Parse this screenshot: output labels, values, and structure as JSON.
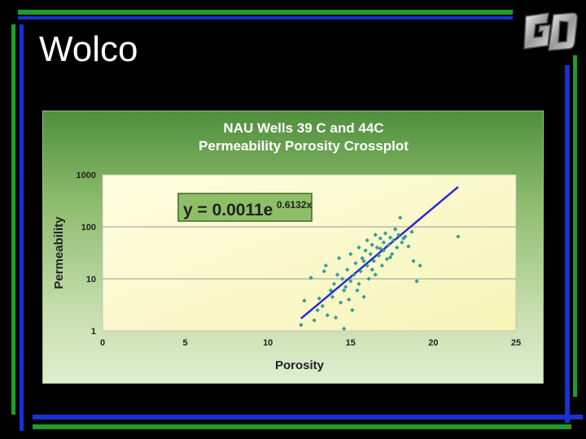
{
  "slide": {
    "title": "Wolco"
  },
  "logo": {
    "icon": "go-logo-icon"
  },
  "colors": {
    "frame_green": "#1e9c2e",
    "frame_blue": "#1a2fd6",
    "trend_line": "#2a2ad6",
    "points": "#2aa3a3"
  },
  "chart_data": {
    "type": "scatter",
    "title": "NAU Wells 39 C and 44C",
    "subtitle": "Permeability Porosity Crossplot",
    "xlabel": "Porosity",
    "ylabel": "Permeability",
    "xlim": [
      0,
      25
    ],
    "ylim": [
      1,
      1000
    ],
    "y_scale": "log",
    "x_ticks": [
      0,
      5,
      10,
      15,
      20,
      25
    ],
    "y_ticks": [
      1,
      10,
      100,
      1000
    ],
    "grid": "horizontal",
    "equation_base": "y = 0.0011e",
    "equation_exp": "0.6132x",
    "trendline": {
      "a": 0.0011,
      "b": 0.6132,
      "x_range": [
        12,
        21.5
      ]
    },
    "points": [
      [
        12.0,
        1.3
      ],
      [
        12.2,
        3.8
      ],
      [
        12.6,
        10.5
      ],
      [
        12.8,
        1.6
      ],
      [
        13.0,
        2.5
      ],
      [
        13.1,
        4.2
      ],
      [
        13.3,
        3.0
      ],
      [
        13.4,
        14.0
      ],
      [
        13.5,
        18.0
      ],
      [
        13.6,
        2.0
      ],
      [
        13.8,
        6.0
      ],
      [
        13.9,
        4.5
      ],
      [
        14.0,
        8.0
      ],
      [
        14.1,
        1.8
      ],
      [
        14.2,
        12.0
      ],
      [
        14.3,
        25.0
      ],
      [
        14.4,
        3.5
      ],
      [
        14.5,
        10.0
      ],
      [
        14.6,
        1.1
      ],
      [
        14.7,
        7.0
      ],
      [
        14.8,
        15.0
      ],
      [
        14.9,
        4.0
      ],
      [
        15.0,
        9.0
      ],
      [
        15.0,
        30.0
      ],
      [
        15.1,
        2.5
      ],
      [
        15.2,
        12.0
      ],
      [
        15.3,
        20.0
      ],
      [
        15.4,
        6.0
      ],
      [
        15.5,
        40.0
      ],
      [
        15.5,
        8.0
      ],
      [
        15.6,
        14.0
      ],
      [
        15.7,
        25.0
      ],
      [
        15.8,
        4.5
      ],
      [
        15.9,
        35.0
      ],
      [
        16.0,
        55.0
      ],
      [
        16.0,
        18.0
      ],
      [
        16.1,
        10.0
      ],
      [
        16.2,
        30.0
      ],
      [
        16.3,
        45.0
      ],
      [
        16.4,
        22.0
      ],
      [
        16.5,
        70.0
      ],
      [
        16.5,
        12.0
      ],
      [
        16.6,
        40.0
      ],
      [
        16.7,
        28.0
      ],
      [
        16.8,
        60.0
      ],
      [
        16.9,
        18.0
      ],
      [
        17.0,
        50.0
      ],
      [
        17.0,
        35.0
      ],
      [
        17.1,
        75.0
      ],
      [
        17.2,
        24.0
      ],
      [
        17.3,
        45.0
      ],
      [
        17.4,
        62.0
      ],
      [
        17.5,
        30.0
      ],
      [
        17.6,
        55.0
      ],
      [
        17.7,
        90.0
      ],
      [
        17.8,
        40.0
      ],
      [
        17.9,
        70.0
      ],
      [
        18.0,
        150.0
      ],
      [
        18.1,
        50.0
      ],
      [
        18.2,
        60.0
      ],
      [
        18.3,
        65.0
      ],
      [
        18.5,
        42.0
      ],
      [
        18.7,
        80.0
      ],
      [
        18.8,
        22.0
      ],
      [
        19.0,
        9.0
      ],
      [
        19.2,
        18.0
      ],
      [
        21.5,
        65.0
      ],
      [
        16.8,
        38.0
      ],
      [
        17.4,
        26.0
      ],
      [
        16.3,
        15.0
      ],
      [
        15.8,
        22.0
      ],
      [
        14.6,
        6.0
      ]
    ]
  }
}
